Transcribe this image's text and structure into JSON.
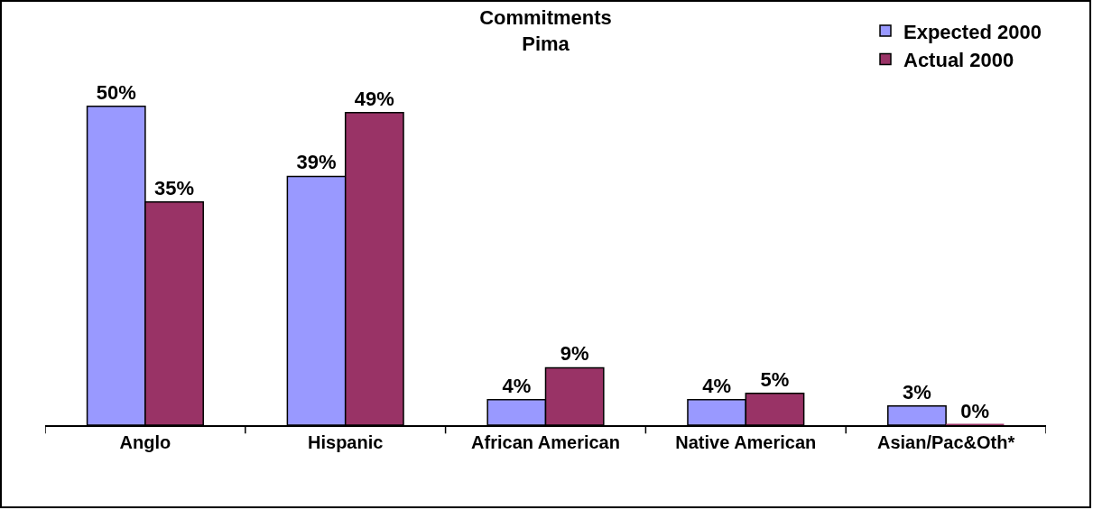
{
  "chart_data": {
    "type": "bar",
    "title": "Commitments\nPima",
    "categories": [
      "Anglo",
      "Hispanic",
      "African American",
      "Native American",
      "Asian/Pac&Oth*"
    ],
    "series": [
      {
        "name": "Expected 2000",
        "color": "#9999ff",
        "values": [
          50,
          39,
          4,
          4,
          3
        ],
        "value_labels": [
          "50%",
          "39%",
          "4%",
          "4%",
          "3%"
        ]
      },
      {
        "name": "Actual 2000",
        "color": "#993366",
        "values": [
          35,
          49,
          9,
          5,
          0
        ],
        "value_labels": [
          "35%",
          "49%",
          "9%",
          "5%",
          "0%"
        ]
      }
    ],
    "legend": "top right",
    "tick_labels": "x"
  }
}
